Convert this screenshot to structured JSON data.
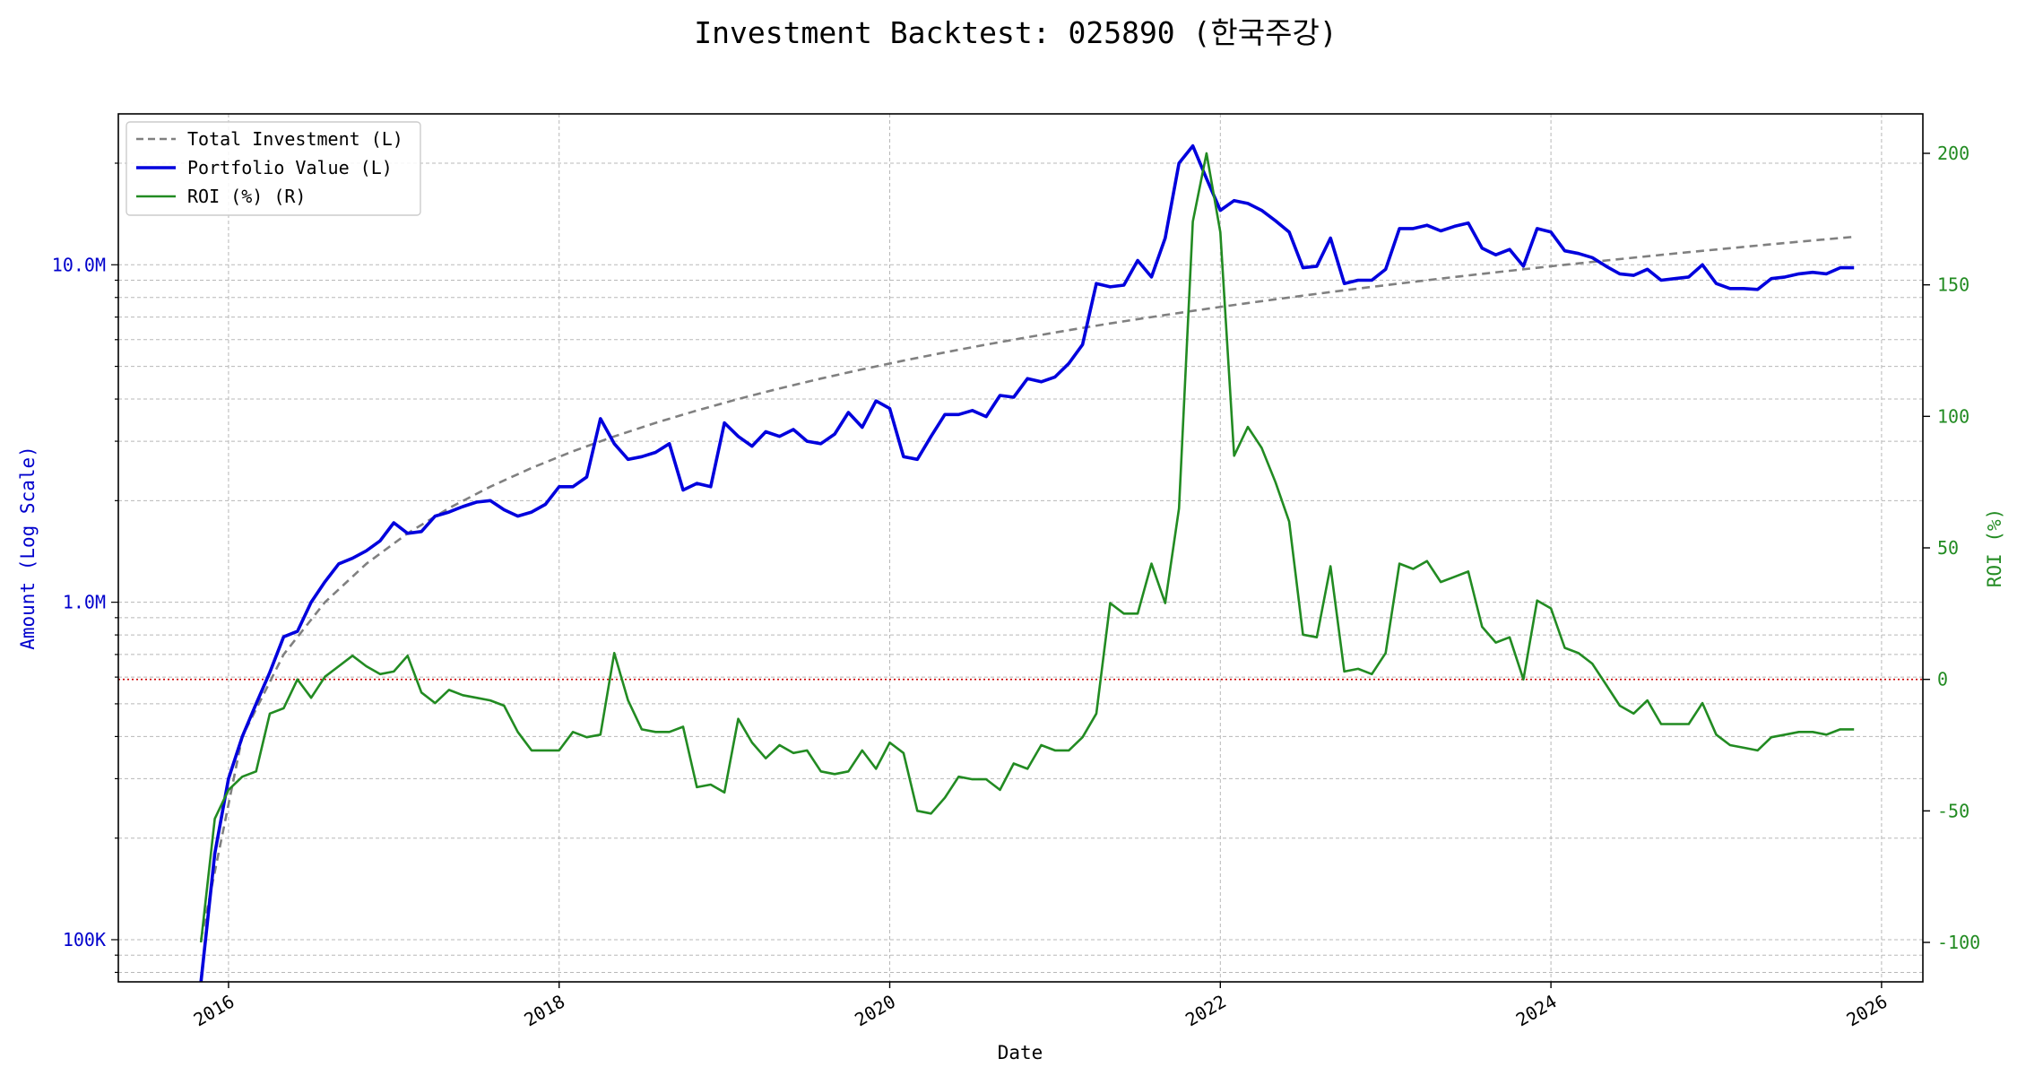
{
  "chart_data": {
    "type": "line",
    "title": "Investment Backtest: 025890 (한국주강)",
    "xlabel": "Date",
    "ylabel_left": "Amount (Log Scale)",
    "ylabel_right": "ROI (%)",
    "x_ticks": [
      "2016",
      "2018",
      "2020",
      "2022",
      "2024",
      "2026"
    ],
    "y_left_ticks": [
      "100K",
      "1.0M",
      "10.0M"
    ],
    "y_right_ticks": [
      "-100",
      "-50",
      "0",
      "50",
      "100",
      "150",
      "200"
    ],
    "y_left_scale": "log",
    "y_left_range": [
      75000,
      28000000
    ],
    "y_right_range": [
      -115,
      215
    ],
    "x_range": [
      "2015-05",
      "2026-04"
    ],
    "grid": true,
    "legend_position": "top-left",
    "zero_line": {
      "axis": "right",
      "value": 0,
      "color": "#cc0000",
      "style": "dotted"
    },
    "colors": {
      "total_investment": "#808080",
      "portfolio_value": "#0000dd",
      "roi": "#228b22",
      "left_axis": "#0000cc",
      "right_axis": "#228b22"
    },
    "series": [
      {
        "name": "Total Investment (L)",
        "axis": "left",
        "style": "dashed",
        "x": [
          "2015-11",
          "2016-02",
          "2016-05",
          "2016-08",
          "2016-11",
          "2017-02",
          "2017-05",
          "2017-08",
          "2017-11",
          "2018-02",
          "2018-05",
          "2018-08",
          "2018-11",
          "2019-02",
          "2019-05",
          "2019-08",
          "2019-11",
          "2020-02",
          "2020-05",
          "2020-08",
          "2020-11",
          "2021-02",
          "2021-05",
          "2021-08",
          "2021-11",
          "2022-02",
          "2022-05",
          "2022-08",
          "2022-11",
          "2023-02",
          "2023-05",
          "2023-08",
          "2023-11",
          "2024-02",
          "2024-05",
          "2024-08",
          "2024-11",
          "2025-02",
          "2025-05",
          "2025-08",
          "2025-11"
        ],
        "y": [
          100000,
          400000,
          700000,
          1000000,
          1300000,
          1600000,
          1900000,
          2200000,
          2500000,
          2800000,
          3100000,
          3400000,
          3700000,
          4000000,
          4300000,
          4600000,
          4900000,
          5200000,
          5500000,
          5800000,
          6100000,
          6400000,
          6700000,
          7000000,
          7300000,
          7600000,
          7900000,
          8200000,
          8500000,
          8800000,
          9100000,
          9400000,
          9700000,
          10000000,
          10300000,
          10600000,
          10900000,
          11200000,
          11500000,
          11800000,
          12100000
        ]
      },
      {
        "name": "Portfolio Value (L)",
        "axis": "left",
        "style": "solid",
        "x": [
          "2015-11",
          "2015-12",
          "2016-01",
          "2016-02",
          "2016-03",
          "2016-04",
          "2016-05",
          "2016-06",
          "2016-07",
          "2016-08",
          "2016-09",
          "2016-10",
          "2016-11",
          "2016-12",
          "2017-01",
          "2017-02",
          "2017-03",
          "2017-04",
          "2017-05",
          "2017-06",
          "2017-07",
          "2017-08",
          "2017-09",
          "2017-10",
          "2017-11",
          "2017-12",
          "2018-01",
          "2018-02",
          "2018-03",
          "2018-04",
          "2018-05",
          "2018-06",
          "2018-07",
          "2018-08",
          "2018-09",
          "2018-10",
          "2018-11",
          "2018-12",
          "2019-01",
          "2019-02",
          "2019-03",
          "2019-04",
          "2019-05",
          "2019-06",
          "2019-07",
          "2019-08",
          "2019-09",
          "2019-10",
          "2019-11",
          "2019-12",
          "2020-01",
          "2020-02",
          "2020-03",
          "2020-04",
          "2020-05",
          "2020-06",
          "2020-07",
          "2020-08",
          "2020-09",
          "2020-10",
          "2020-11",
          "2020-12",
          "2021-01",
          "2021-02",
          "2021-03",
          "2021-04",
          "2021-05",
          "2021-06",
          "2021-07",
          "2021-08",
          "2021-09",
          "2021-10",
          "2021-11",
          "2021-12",
          "2022-01",
          "2022-02",
          "2022-03",
          "2022-04",
          "2022-05",
          "2022-06",
          "2022-07",
          "2022-08",
          "2022-09",
          "2022-10",
          "2022-11",
          "2022-12",
          "2023-01",
          "2023-02",
          "2023-03",
          "2023-04",
          "2023-05",
          "2023-06",
          "2023-07",
          "2023-08",
          "2023-09",
          "2023-10",
          "2023-11",
          "2023-12",
          "2024-01",
          "2024-02",
          "2024-03",
          "2024-04",
          "2024-05",
          "2024-06",
          "2024-07",
          "2024-08",
          "2024-09",
          "2024-10",
          "2024-11",
          "2024-12",
          "2025-01",
          "2025-02",
          "2025-03",
          "2025-04",
          "2025-05",
          "2025-06",
          "2025-07",
          "2025-08",
          "2025-09",
          "2025-10",
          "2025-11"
        ],
        "y": [
          70000,
          180000,
          300000,
          400000,
          500000,
          620000,
          790000,
          820000,
          1000000,
          1150000,
          1300000,
          1350000,
          1420000,
          1520000,
          1720000,
          1600000,
          1620000,
          1800000,
          1850000,
          1920000,
          1980000,
          2000000,
          1880000,
          1800000,
          1850000,
          1950000,
          2200000,
          2200000,
          2350000,
          3500000,
          2950000,
          2650000,
          2700000,
          2780000,
          2950000,
          2150000,
          2250000,
          2200000,
          3400000,
          3100000,
          2900000,
          3200000,
          3100000,
          3250000,
          3000000,
          2950000,
          3150000,
          3650000,
          3300000,
          3950000,
          3750000,
          2700000,
          2650000,
          3100000,
          3600000,
          3600000,
          3700000,
          3550000,
          4100000,
          4050000,
          4600000,
          4500000,
          4650000,
          5100000,
          5800000,
          8800000,
          8600000,
          8700000,
          10300000,
          9200000,
          12000000,
          20000000,
          22500000,
          18000000,
          14500000,
          15500000,
          15200000,
          14500000,
          13500000,
          12500000,
          9800000,
          9900000,
          12000000,
          8800000,
          9000000,
          9000000,
          9700000,
          12800000,
          12800000,
          13100000,
          12600000,
          13000000,
          13300000,
          11200000,
          10700000,
          11100000,
          9900000,
          12800000,
          12500000,
          11000000,
          10800000,
          10500000,
          9900000,
          9400000,
          9300000,
          9700000,
          9000000,
          9100000,
          9200000,
          10000000,
          8800000,
          8500000,
          8500000,
          8450000,
          9100000,
          9200000,
          9400000,
          9500000,
          9400000,
          9800000,
          9800000
        ]
      },
      {
        "name": "ROI (%) (R)",
        "axis": "right",
        "style": "solid",
        "x": [
          "2015-11",
          "2015-12",
          "2016-01",
          "2016-02",
          "2016-03",
          "2016-04",
          "2016-05",
          "2016-06",
          "2016-07",
          "2016-08",
          "2016-09",
          "2016-10",
          "2016-11",
          "2016-12",
          "2017-01",
          "2017-02",
          "2017-03",
          "2017-04",
          "2017-05",
          "2017-06",
          "2017-07",
          "2017-08",
          "2017-09",
          "2017-10",
          "2017-11",
          "2017-12",
          "2018-01",
          "2018-02",
          "2018-03",
          "2018-04",
          "2018-05",
          "2018-06",
          "2018-07",
          "2018-08",
          "2018-09",
          "2018-10",
          "2018-11",
          "2018-12",
          "2019-01",
          "2019-02",
          "2019-03",
          "2019-04",
          "2019-05",
          "2019-06",
          "2019-07",
          "2019-08",
          "2019-09",
          "2019-10",
          "2019-11",
          "2019-12",
          "2020-01",
          "2020-02",
          "2020-03",
          "2020-04",
          "2020-05",
          "2020-06",
          "2020-07",
          "2020-08",
          "2020-09",
          "2020-10",
          "2020-11",
          "2020-12",
          "2021-01",
          "2021-02",
          "2021-03",
          "2021-04",
          "2021-05",
          "2021-06",
          "2021-07",
          "2021-08",
          "2021-09",
          "2021-10",
          "2021-11",
          "2021-12",
          "2022-01",
          "2022-02",
          "2022-03",
          "2022-04",
          "2022-05",
          "2022-06",
          "2022-07",
          "2022-08",
          "2022-09",
          "2022-10",
          "2022-11",
          "2022-12",
          "2023-01",
          "2023-02",
          "2023-03",
          "2023-04",
          "2023-05",
          "2023-06",
          "2023-07",
          "2023-08",
          "2023-09",
          "2023-10",
          "2023-11",
          "2023-12",
          "2024-01",
          "2024-02",
          "2024-03",
          "2024-04",
          "2024-05",
          "2024-06",
          "2024-07",
          "2024-08",
          "2024-09",
          "2024-10",
          "2024-11",
          "2024-12",
          "2025-01",
          "2025-02",
          "2025-03",
          "2025-04",
          "2025-05",
          "2025-06",
          "2025-07",
          "2025-08",
          "2025-09",
          "2025-10",
          "2025-11"
        ],
        "y": [
          -100,
          -53,
          -42,
          -37,
          -35,
          -13,
          -11,
          0,
          -7,
          1,
          5,
          9,
          5,
          2,
          3,
          9,
          -5,
          -9,
          -4,
          -6,
          -7,
          -8,
          -10,
          -20,
          -27,
          -27,
          -27,
          -20,
          -22,
          -21,
          10,
          -8,
          -19,
          -20,
          -20,
          -18,
          -41,
          -40,
          -43,
          -15,
          -24,
          -30,
          -25,
          -28,
          -27,
          -35,
          -36,
          -35,
          -27,
          -34,
          -24,
          -28,
          -50,
          -51,
          -45,
          -37,
          -38,
          -38,
          -42,
          -32,
          -34,
          -25,
          -27,
          -27,
          -22,
          -13,
          29,
          25,
          25,
          44,
          29,
          65,
          174,
          200,
          170,
          85,
          96,
          88,
          75,
          60,
          17,
          16,
          43,
          3,
          4,
          2,
          10,
          44,
          42,
          45,
          37,
          39,
          41,
          20,
          14,
          16,
          0,
          30,
          27,
          12,
          10,
          6,
          -2,
          -10,
          -13,
          -8,
          -17,
          -17,
          -17,
          -9,
          -21,
          -25,
          -26,
          -27,
          -22,
          -21,
          -20,
          -20,
          -21,
          -19,
          -19
        ]
      }
    ]
  }
}
